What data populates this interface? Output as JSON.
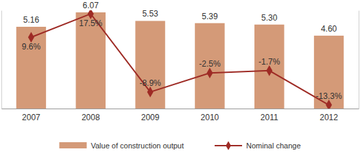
{
  "chart_data": {
    "type": "bar",
    "categories": [
      "2007",
      "2008",
      "2009",
      "2010",
      "2011",
      "2012"
    ],
    "series": [
      {
        "name": "Value of construction output",
        "type": "bar",
        "color": "#d49a78",
        "values": [
          5.16,
          6.07,
          5.53,
          5.39,
          5.3,
          4.6
        ],
        "value_labels": [
          "5.16",
          "6.07",
          "5.53",
          "5.39",
          "5.30",
          "4.60"
        ]
      },
      {
        "name": "Nominal change",
        "type": "line",
        "axis": "y2",
        "color": "#9e2b25",
        "marker": "diamond",
        "values": [
          9.6,
          17.5,
          -8.9,
          -2.5,
          -1.7,
          -13.3
        ],
        "value_labels": [
          "9.6%",
          "17.5%",
          "-8.9%",
          "-2.5%",
          "-1.7%",
          "-13.3%"
        ]
      }
    ],
    "ylim": [
      0,
      6.2
    ],
    "y2lim": [
      -14.5,
      18.7
    ],
    "data_labels": true,
    "tick_labels": "x",
    "legend": "bottom"
  }
}
